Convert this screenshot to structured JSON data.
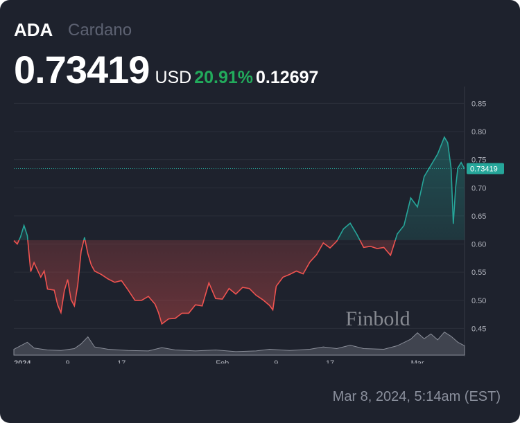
{
  "header": {
    "ticker": "ADA",
    "name": "Cardano",
    "price": "0.73419",
    "currency": "USD",
    "change_pct": "20.91%",
    "change_abs": "0.12697"
  },
  "watermark": "Finbold",
  "timestamp": "Mar 8, 2024, 5:14am (EST)",
  "colors": {
    "background": "#1e222d",
    "up": "#26a69a",
    "down": "#ef5350",
    "change_green": "#22ab5c"
  },
  "chart_data": {
    "type": "area",
    "title": "",
    "xlabel": "",
    "ylabel": "",
    "x_range": [
      "2024-01-01",
      "2024-03-08"
    ],
    "ylim": [
      0.4,
      0.88
    ],
    "y_axis_side": "right",
    "y_ticks": [
      0.45,
      0.5,
      0.55,
      0.6,
      0.65,
      0.7,
      0.75,
      0.8,
      0.85
    ],
    "y_tick_labels": [
      "0.45",
      "0.50",
      "0.55",
      "0.60",
      "0.65",
      "0.70",
      "0.75",
      "0.80",
      "0.85"
    ],
    "x_ticks": [
      {
        "date": "2024-01-01",
        "label": "2024"
      },
      {
        "date": "2024-01-09",
        "label": "9"
      },
      {
        "date": "2024-01-17",
        "label": "17"
      },
      {
        "date": "2024-02-01",
        "label": "Feb"
      },
      {
        "date": "2024-02-09",
        "label": "9"
      },
      {
        "date": "2024-02-17",
        "label": "17"
      },
      {
        "date": "2024-03-01",
        "label": "Mar"
      }
    ],
    "grid": true,
    "baseline": 0.607,
    "last_value": 0.73419,
    "last_value_label": "0.73419",
    "series": [
      {
        "values": [
          [
            "2024-01-01",
            0.606
          ],
          [
            "2024-01-01T12",
            0.6
          ],
          [
            "2024-01-02",
            0.613
          ],
          [
            "2024-01-02T12",
            0.633
          ],
          [
            "2024-01-03",
            0.615
          ],
          [
            "2024-01-03T12",
            0.551
          ],
          [
            "2024-01-04",
            0.567
          ],
          [
            "2024-01-05",
            0.541
          ],
          [
            "2024-01-05T12",
            0.552
          ],
          [
            "2024-01-06",
            0.52
          ],
          [
            "2024-01-07",
            0.518
          ],
          [
            "2024-01-07T12",
            0.492
          ],
          [
            "2024-01-08",
            0.478
          ],
          [
            "2024-01-08T12",
            0.517
          ],
          [
            "2024-01-09",
            0.537
          ],
          [
            "2024-01-09T12",
            0.501
          ],
          [
            "2024-01-10",
            0.49
          ],
          [
            "2024-01-10T12",
            0.528
          ],
          [
            "2024-01-11",
            0.587
          ],
          [
            "2024-01-11T12",
            0.612
          ],
          [
            "2024-01-12",
            0.583
          ],
          [
            "2024-01-12T12",
            0.563
          ],
          [
            "2024-01-13",
            0.552
          ],
          [
            "2024-01-14",
            0.546
          ],
          [
            "2024-01-15",
            0.538
          ],
          [
            "2024-01-16",
            0.532
          ],
          [
            "2024-01-17",
            0.535
          ],
          [
            "2024-01-18",
            0.518
          ],
          [
            "2024-01-19",
            0.5
          ],
          [
            "2024-01-20",
            0.5
          ],
          [
            "2024-01-21",
            0.507
          ],
          [
            "2024-01-22",
            0.493
          ],
          [
            "2024-01-22T12",
            0.478
          ],
          [
            "2024-01-23",
            0.458
          ],
          [
            "2024-01-24",
            0.467
          ],
          [
            "2024-01-25",
            0.468
          ],
          [
            "2024-01-26",
            0.477
          ],
          [
            "2024-01-27",
            0.477
          ],
          [
            "2024-01-28",
            0.492
          ],
          [
            "2024-01-29",
            0.49
          ],
          [
            "2024-01-30",
            0.531
          ],
          [
            "2024-01-31",
            0.503
          ],
          [
            "2024-02-01",
            0.502
          ],
          [
            "2024-02-02",
            0.521
          ],
          [
            "2024-02-03",
            0.511
          ],
          [
            "2024-02-04",
            0.523
          ],
          [
            "2024-02-05",
            0.521
          ],
          [
            "2024-02-06",
            0.509
          ],
          [
            "2024-02-07",
            0.501
          ],
          [
            "2024-02-08",
            0.491
          ],
          [
            "2024-02-08T12",
            0.483
          ],
          [
            "2024-02-09",
            0.525
          ],
          [
            "2024-02-10",
            0.541
          ],
          [
            "2024-02-11",
            0.546
          ],
          [
            "2024-02-12",
            0.552
          ],
          [
            "2024-02-13",
            0.547
          ],
          [
            "2024-02-14",
            0.568
          ],
          [
            "2024-02-15",
            0.581
          ],
          [
            "2024-02-16",
            0.602
          ],
          [
            "2024-02-17",
            0.593
          ],
          [
            "2024-02-18",
            0.605
          ],
          [
            "2024-02-19",
            0.627
          ],
          [
            "2024-02-20",
            0.637
          ],
          [
            "2024-02-21",
            0.617
          ],
          [
            "2024-02-22",
            0.594
          ],
          [
            "2024-02-23",
            0.596
          ],
          [
            "2024-02-24",
            0.592
          ],
          [
            "2024-02-25",
            0.594
          ],
          [
            "2024-02-26",
            0.58
          ],
          [
            "2024-02-27",
            0.618
          ],
          [
            "2024-02-28",
            0.633
          ],
          [
            "2024-02-29",
            0.682
          ],
          [
            "2024-03-01",
            0.666
          ],
          [
            "2024-03-02",
            0.72
          ],
          [
            "2024-03-03",
            0.74
          ],
          [
            "2024-03-04",
            0.76
          ],
          [
            "2024-03-05",
            0.79
          ],
          [
            "2024-03-05T12",
            0.78
          ],
          [
            "2024-03-06",
            0.735
          ],
          [
            "2024-03-06T08",
            0.636
          ],
          [
            "2024-03-06T16",
            0.7
          ],
          [
            "2024-03-07",
            0.735
          ],
          [
            "2024-03-07T12",
            0.745
          ],
          [
            "2024-03-08",
            0.734
          ]
        ]
      }
    ],
    "volume": {
      "values": [
        [
          "2024-01-01",
          0.25
        ],
        [
          "2024-01-03",
          0.55
        ],
        [
          "2024-01-04",
          0.3
        ],
        [
          "2024-01-06",
          0.22
        ],
        [
          "2024-01-08",
          0.2
        ],
        [
          "2024-01-10",
          0.28
        ],
        [
          "2024-01-11",
          0.48
        ],
        [
          "2024-01-12",
          0.78
        ],
        [
          "2024-01-13",
          0.35
        ],
        [
          "2024-01-15",
          0.25
        ],
        [
          "2024-01-18",
          0.2
        ],
        [
          "2024-01-21",
          0.18
        ],
        [
          "2024-01-23",
          0.32
        ],
        [
          "2024-01-25",
          0.22
        ],
        [
          "2024-01-28",
          0.18
        ],
        [
          "2024-01-31",
          0.22
        ],
        [
          "2024-02-03",
          0.15
        ],
        [
          "2024-02-06",
          0.18
        ],
        [
          "2024-02-08",
          0.25
        ],
        [
          "2024-02-11",
          0.2
        ],
        [
          "2024-02-14",
          0.25
        ],
        [
          "2024-02-16",
          0.35
        ],
        [
          "2024-02-18",
          0.28
        ],
        [
          "2024-02-20",
          0.42
        ],
        [
          "2024-02-22",
          0.28
        ],
        [
          "2024-02-25",
          0.25
        ],
        [
          "2024-02-27",
          0.4
        ],
        [
          "2024-02-29",
          0.68
        ],
        [
          "2024-03-01",
          0.95
        ],
        [
          "2024-03-02",
          0.7
        ],
        [
          "2024-03-03",
          0.9
        ],
        [
          "2024-03-04",
          0.65
        ],
        [
          "2024-03-05",
          0.98
        ],
        [
          "2024-03-06",
          0.8
        ],
        [
          "2024-03-07",
          0.55
        ],
        [
          "2024-03-08",
          0.4
        ]
      ]
    }
  }
}
